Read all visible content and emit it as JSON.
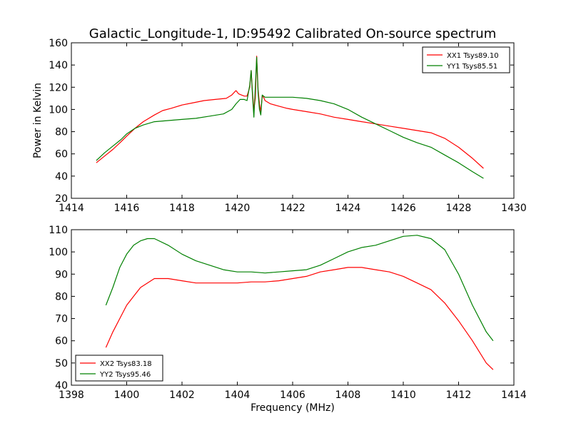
{
  "chart_data": [
    {
      "type": "line",
      "title": "Galactic_Longitude-1, ID:95492 Calibrated On-source spectrum",
      "xlabel": "",
      "ylabel": "Power in Kelvin",
      "xlim": [
        1414,
        1430
      ],
      "ylim": [
        20,
        160
      ],
      "xticks": [
        1414,
        1416,
        1418,
        1420,
        1422,
        1424,
        1426,
        1428,
        1430
      ],
      "yticks": [
        20,
        40,
        60,
        80,
        100,
        120,
        140,
        160
      ],
      "legend_position": "top-right",
      "grid": false,
      "series": [
        {
          "name": "XX1 Tsys89.10",
          "color": "#ff0000",
          "x": [
            1414.9,
            1415.2,
            1415.5,
            1415.8,
            1416.0,
            1416.3,
            1416.6,
            1417.0,
            1417.3,
            1417.6,
            1418.0,
            1418.4,
            1418.8,
            1419.2,
            1419.6,
            1419.8,
            1419.95,
            1420.05,
            1420.15,
            1420.25,
            1420.35,
            1420.45,
            1420.5,
            1420.55,
            1420.6,
            1420.65,
            1420.7,
            1420.75,
            1420.8,
            1420.85,
            1420.9,
            1420.95,
            1421.0,
            1421.2,
            1421.5,
            1421.8,
            1422.0,
            1422.5,
            1423.0,
            1423.5,
            1424.0,
            1424.5,
            1425.0,
            1425.5,
            1426.0,
            1426.5,
            1427.0,
            1427.5,
            1428.0,
            1428.5,
            1428.9
          ],
          "y": [
            52,
            58,
            64,
            71,
            76,
            83,
            89,
            95,
            99,
            101,
            104,
            106,
            108,
            109,
            110,
            113,
            117,
            114,
            113,
            112,
            112,
            120,
            135,
            115,
            100,
            110,
            148,
            118,
            105,
            98,
            112,
            111,
            108,
            105,
            103,
            101,
            100,
            98,
            96,
            93,
            91,
            89,
            87,
            85,
            83,
            81,
            79,
            74,
            66,
            56,
            47
          ]
        },
        {
          "name": "YY1 Tsys85.51",
          "color": "#008000",
          "x": [
            1414.9,
            1415.2,
            1415.5,
            1415.8,
            1416.0,
            1416.3,
            1416.6,
            1417.0,
            1417.5,
            1418.0,
            1418.5,
            1419.0,
            1419.5,
            1419.8,
            1419.95,
            1420.1,
            1420.25,
            1420.35,
            1420.45,
            1420.5,
            1420.55,
            1420.6,
            1420.65,
            1420.7,
            1420.75,
            1420.8,
            1420.85,
            1420.9,
            1420.95,
            1421.0,
            1421.3,
            1421.6,
            1422.0,
            1422.5,
            1423.0,
            1423.5,
            1424.0,
            1424.5,
            1425.0,
            1425.5,
            1426.0,
            1426.5,
            1427.0,
            1427.5,
            1428.0,
            1428.5,
            1428.9
          ],
          "y": [
            54,
            61,
            67,
            73,
            78,
            83,
            86,
            89,
            90,
            91,
            92,
            94,
            96,
            100,
            105,
            109,
            109,
            108,
            122,
            135,
            112,
            93,
            120,
            147,
            115,
            100,
            95,
            113,
            112,
            111,
            111,
            111,
            111,
            110,
            108,
            105,
            100,
            93,
            87,
            81,
            75,
            70,
            66,
            59,
            52,
            44,
            38
          ]
        }
      ]
    },
    {
      "type": "line",
      "title": "",
      "xlabel": "Frequency (MHz)",
      "ylabel": "",
      "xlim": [
        1398,
        1414
      ],
      "ylim": [
        40,
        110
      ],
      "xticks": [
        1398,
        1400,
        1402,
        1404,
        1406,
        1408,
        1410,
        1412,
        1414
      ],
      "yticks": [
        40,
        50,
        60,
        70,
        80,
        90,
        100,
        110
      ],
      "legend_position": "bottom-left",
      "grid": false,
      "series": [
        {
          "name": "XX2 Tsys83.18",
          "color": "#ff0000",
          "x": [
            1399.25,
            1399.5,
            1399.75,
            1400.0,
            1400.25,
            1400.5,
            1400.75,
            1401.0,
            1401.5,
            1402.0,
            1402.5,
            1403.0,
            1403.5,
            1404.0,
            1404.5,
            1405.0,
            1405.5,
            1406.0,
            1406.5,
            1407.0,
            1407.5,
            1408.0,
            1408.5,
            1409.0,
            1409.5,
            1410.0,
            1410.5,
            1411.0,
            1411.5,
            1412.0,
            1412.5,
            1413.0,
            1413.25
          ],
          "y": [
            57,
            64,
            70,
            76,
            80,
            84,
            86,
            88,
            88,
            87,
            86,
            86,
            86,
            86,
            86.5,
            86.5,
            87,
            88,
            89,
            91,
            92,
            93,
            93,
            92,
            91,
            89,
            86,
            83,
            77,
            69,
            60,
            50,
            47
          ]
        },
        {
          "name": "YY2 Tsys95.46",
          "color": "#008000",
          "x": [
            1399.25,
            1399.5,
            1399.75,
            1400.0,
            1400.25,
            1400.5,
            1400.75,
            1401.0,
            1401.5,
            1402.0,
            1402.5,
            1403.0,
            1403.5,
            1404.0,
            1404.5,
            1405.0,
            1405.5,
            1406.0,
            1406.5,
            1407.0,
            1407.5,
            1408.0,
            1408.5,
            1409.0,
            1409.5,
            1410.0,
            1410.5,
            1411.0,
            1411.5,
            1412.0,
            1412.5,
            1413.0,
            1413.25
          ],
          "y": [
            76,
            84,
            93,
            99,
            103,
            105,
            106,
            106,
            103,
            99,
            96,
            94,
            92,
            91,
            91,
            90.5,
            91,
            91.5,
            92,
            94,
            97,
            100,
            102,
            103,
            105,
            107,
            107.5,
            106,
            101,
            90,
            76,
            64,
            60
          ]
        }
      ]
    }
  ]
}
